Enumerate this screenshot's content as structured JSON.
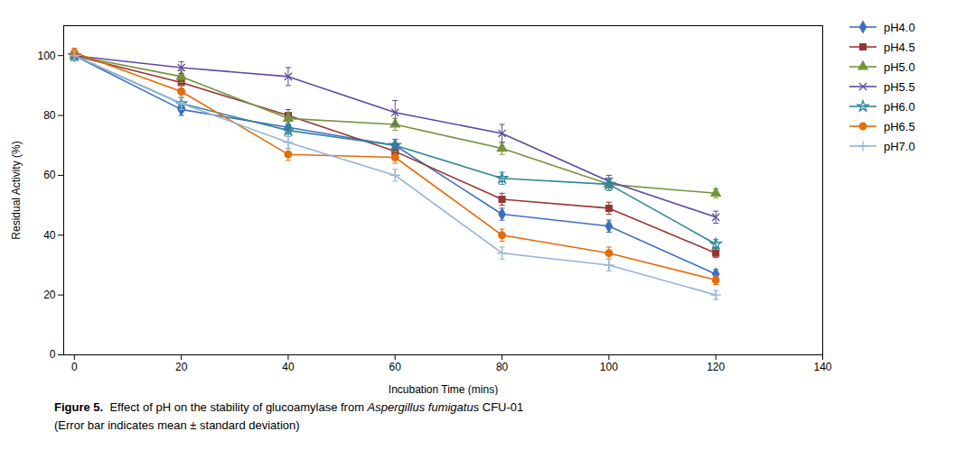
{
  "chart_data": {
    "type": "line",
    "xlabel": "Incubation Time (mins)",
    "ylabel": "Residual Activity (%)",
    "x": [
      0,
      20,
      40,
      60,
      80,
      100,
      120
    ],
    "series": [
      {
        "name": "pH4.0",
        "color": "#3F6EBF",
        "marker": "diamond",
        "values": [
          100,
          82,
          76,
          70,
          47,
          43,
          27
        ],
        "yerr": [
          1.5,
          2,
          2,
          2,
          2,
          2,
          1.5
        ]
      },
      {
        "name": "pH4.5",
        "color": "#963634",
        "marker": "square",
        "values": [
          100,
          91,
          80,
          68,
          52,
          49,
          34
        ],
        "yerr": [
          1.5,
          2,
          2,
          2,
          2,
          2,
          1.5
        ]
      },
      {
        "name": "pH5.0",
        "color": "#77933C",
        "marker": "triangle",
        "values": [
          100,
          93,
          79,
          77,
          69,
          57,
          54
        ],
        "yerr": [
          1.5,
          2,
          2,
          2,
          2,
          2,
          1.5
        ]
      },
      {
        "name": "pH5.5",
        "color": "#604A9E",
        "marker": "x",
        "values": [
          100,
          96,
          93,
          81,
          74,
          58,
          46
        ],
        "yerr": [
          1.5,
          2,
          3,
          4,
          3,
          2,
          2
        ]
      },
      {
        "name": "pH6.0",
        "color": "#31869B",
        "marker": "star",
        "values": [
          100,
          84,
          75,
          70,
          59,
          57,
          37
        ],
        "yerr": [
          1.5,
          2,
          2,
          2,
          2,
          2,
          1.5
        ]
      },
      {
        "name": "pH6.5",
        "color": "#E36C09",
        "marker": "circle",
        "values": [
          101,
          88,
          67,
          66,
          40,
          34,
          25
        ],
        "yerr": [
          1.5,
          2,
          2,
          2,
          2,
          2,
          1.5
        ]
      },
      {
        "name": "pH7.0",
        "color": "#95B3D7",
        "marker": "plus",
        "values": [
          100,
          84,
          71,
          60,
          34,
          30,
          20
        ],
        "yerr": [
          1.5,
          2,
          2,
          2,
          2,
          2,
          1.5
        ]
      }
    ],
    "xlim": [
      -2,
      140
    ],
    "ylim": [
      0,
      110
    ],
    "xticks": [
      0,
      20,
      40,
      60,
      80,
      100,
      120,
      140
    ],
    "yticks": [
      0,
      20,
      40,
      60,
      80,
      100
    ],
    "grid": false,
    "legend": "right",
    "caption": [
      [
        "Figure 5.",
        "  Effect of pH on the stability of glucoamylase from ",
        "Aspergillus fumigatus",
        " CFU-01"
      ],
      [
        "(Error bar indicates mean ± standard deviation)"
      ]
    ]
  }
}
